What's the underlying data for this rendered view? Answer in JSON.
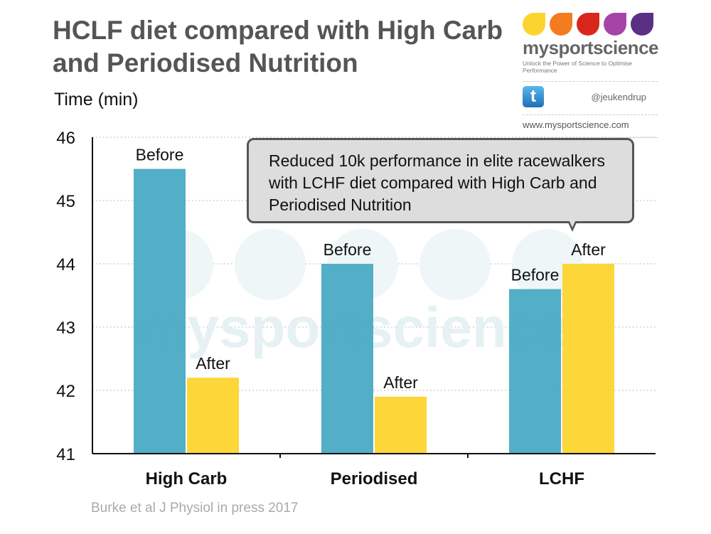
{
  "chart_data": {
    "type": "bar",
    "title": "HCLF diet compared with High Carb and Periodised Nutrition",
    "ylabel": "Time (min)",
    "xlabel": "",
    "ylim": [
      41,
      46
    ],
    "yticks": [
      41,
      42,
      43,
      44,
      45,
      46
    ],
    "grid": true,
    "categories": [
      "High Carb",
      "Periodised",
      "LCHF"
    ],
    "series": [
      {
        "name": "Before",
        "color": "#4aaac4",
        "values": [
          45.5,
          44.0,
          43.6
        ]
      },
      {
        "name": "After",
        "color": "#fdd42e",
        "values": [
          42.2,
          41.9,
          44.0
        ]
      }
    ],
    "annotation": "Reduced 10k performance in elite racewalkers with LCHF diet compared with High Carb and Periodised Nutrition",
    "source": "Burke et al J Physiol in press 2017"
  },
  "logo": {
    "brand": "mysportscience",
    "tagline": "Unlock the Power of Science to Optimise Performance",
    "twitter": "@jeukendrup",
    "website": "www.mysportscience.com",
    "drop_colors": [
      "#fdd42e",
      "#f47c20",
      "#d9261c",
      "#a545a8",
      "#5b2f86"
    ]
  },
  "watermark": "mysportscience"
}
